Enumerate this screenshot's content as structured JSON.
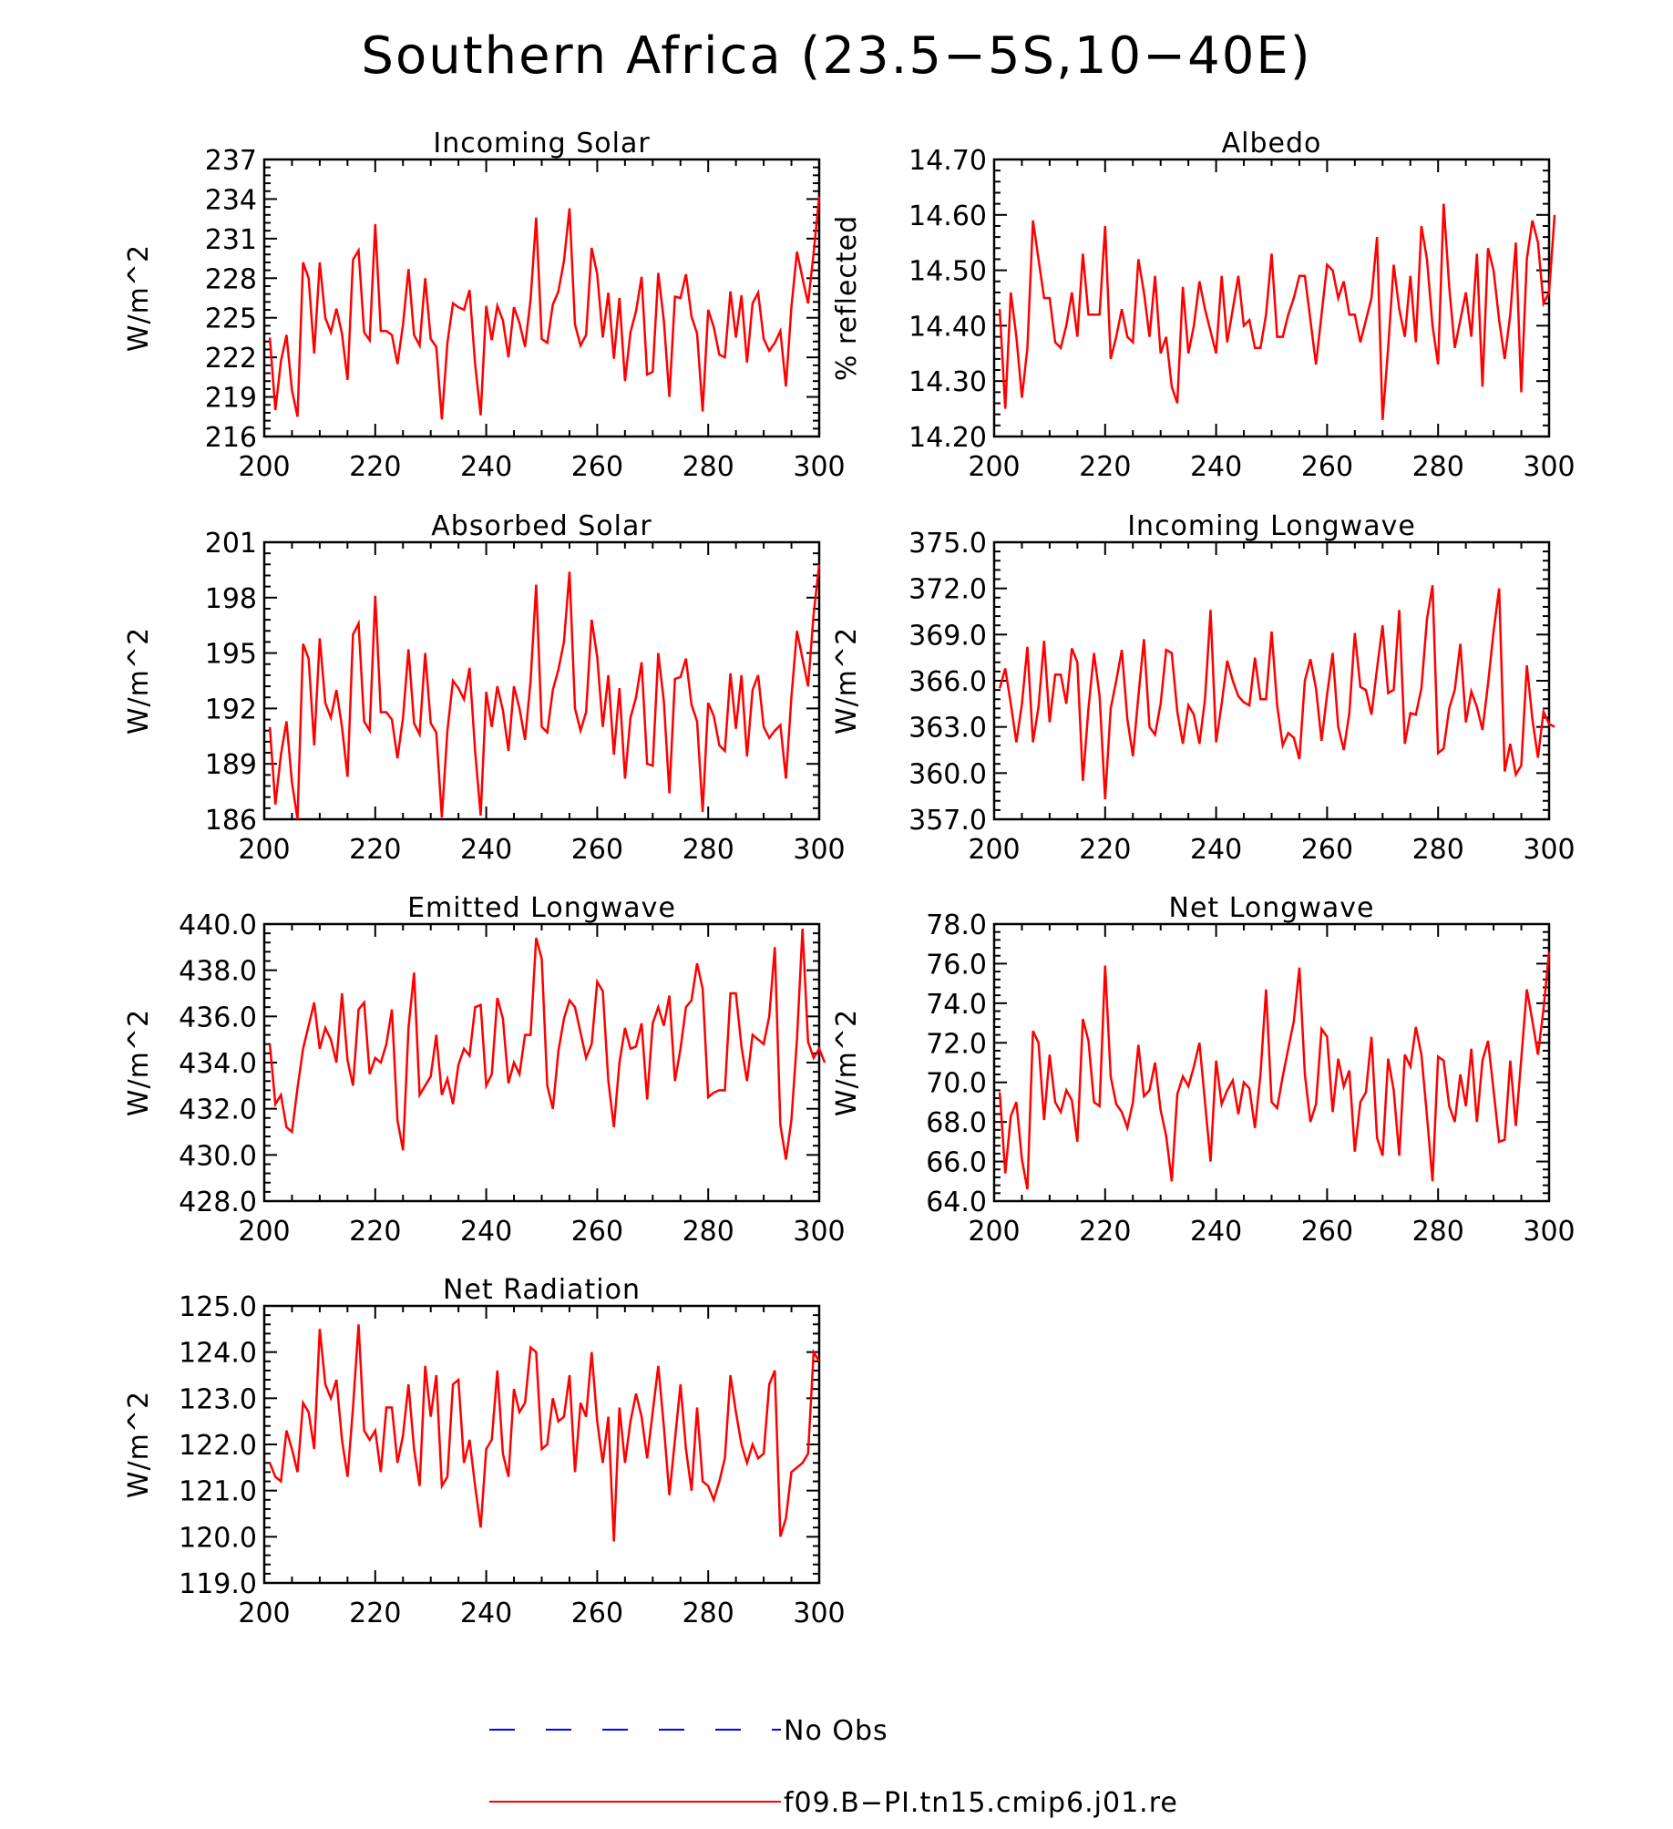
{
  "title": "Southern Africa (23.5−5S,10−40E)",
  "colors": {
    "model": "#ff0000",
    "obs": "#0000ff",
    "axes": "#000000"
  },
  "legend": {
    "obs_label": "No Obs",
    "model_label": "f09.B−PI.tn15.cmip6.j01.re"
  },
  "chart_data": [
    {
      "type": "line",
      "title": "Incoming Solar",
      "ylabel": "W/m^2",
      "xlim": [
        200,
        300
      ],
      "ylim": [
        216,
        237
      ],
      "xticks": [
        200,
        220,
        240,
        260,
        280,
        300
      ],
      "xtick_labels": [
        "200",
        "220",
        "240",
        "260",
        "280",
        "300"
      ],
      "yticks": [
        216,
        219,
        222,
        225,
        228,
        231,
        234,
        237
      ],
      "ytick_labels": [
        "216",
        "219",
        "222",
        "225",
        "228",
        "231",
        "234",
        "237"
      ],
      "series": [
        {
          "x_start": 201,
          "values": [
            223.5,
            218.0,
            221.7,
            223.7,
            219.5,
            217.5,
            229.2,
            228.0,
            222.3,
            229.2,
            225.0,
            223.9,
            225.7,
            223.8,
            220.3,
            229.4,
            230.1,
            223.9,
            223.3,
            232.1,
            224.0,
            224.0,
            223.7,
            221.5,
            224.5,
            228.7,
            223.7,
            222.9,
            228.0,
            223.4,
            222.8,
            217.3,
            223.1,
            226.1,
            225.8,
            225.6,
            227.1,
            221.5,
            217.6,
            225.9,
            223.3,
            225.9,
            224.8,
            222.0,
            225.8,
            224.6,
            222.8,
            226.4,
            232.6,
            223.4,
            223.1,
            226.0,
            227.0,
            229.3,
            233.3,
            224.5,
            222.9,
            223.7,
            230.3,
            228.3,
            223.5,
            226.9,
            221.9,
            226.5,
            220.2,
            223.9,
            225.5,
            228.1,
            220.7,
            220.9,
            228.4,
            224.8,
            219.0,
            226.6,
            226.5,
            228.3,
            225.1,
            223.8,
            217.9,
            225.6,
            224.3,
            222.2,
            222.0,
            227.0,
            223.5,
            226.7,
            221.6,
            226.1,
            226.9,
            223.4,
            222.5,
            223.1,
            224.0,
            219.8,
            225.8,
            230.0,
            228.0,
            226.1,
            229.9,
            234.2
          ]
        }
      ]
    },
    {
      "type": "line",
      "title": "Albedo",
      "ylabel": "% reflected",
      "xlim": [
        200,
        300
      ],
      "ylim": [
        14.2,
        14.7
      ],
      "xticks": [
        200,
        220,
        240,
        260,
        280,
        300
      ],
      "xtick_labels": [
        "200",
        "220",
        "240",
        "260",
        "280",
        "300"
      ],
      "yticks": [
        14.2,
        14.3,
        14.4,
        14.5,
        14.6,
        14.7
      ],
      "ytick_labels": [
        "14.20",
        "14.30",
        "14.40",
        "14.50",
        "14.60",
        "14.70"
      ],
      "series": [
        {
          "x_start": 201,
          "values": [
            14.43,
            14.25,
            14.46,
            14.38,
            14.27,
            14.36,
            14.59,
            14.52,
            14.45,
            14.45,
            14.37,
            14.36,
            14.4,
            14.46,
            14.38,
            14.53,
            14.42,
            14.42,
            14.42,
            14.58,
            14.34,
            14.38,
            14.43,
            14.38,
            14.37,
            14.52,
            14.46,
            14.38,
            14.49,
            14.35,
            14.38,
            14.29,
            14.26,
            14.47,
            14.35,
            14.4,
            14.48,
            14.43,
            14.39,
            14.35,
            14.49,
            14.37,
            14.43,
            14.49,
            14.4,
            14.41,
            14.36,
            14.36,
            14.42,
            14.53,
            14.38,
            14.38,
            14.42,
            14.45,
            14.49,
            14.49,
            14.41,
            14.33,
            14.42,
            14.51,
            14.5,
            14.45,
            14.48,
            14.42,
            14.42,
            14.37,
            14.41,
            14.45,
            14.56,
            14.23,
            14.36,
            14.51,
            14.43,
            14.38,
            14.49,
            14.37,
            14.58,
            14.52,
            14.4,
            14.33,
            14.62,
            14.47,
            14.36,
            14.41,
            14.46,
            14.38,
            14.53,
            14.29,
            14.54,
            14.5,
            14.41,
            14.34,
            14.42,
            14.55,
            14.28,
            14.52,
            14.59,
            14.55,
            14.44,
            14.46,
            14.6
          ]
        }
      ]
    },
    {
      "type": "line",
      "title": "Absorbed Solar",
      "ylabel": "W/m^2",
      "xlim": [
        200,
        300
      ],
      "ylim": [
        186,
        201
      ],
      "xticks": [
        200,
        220,
        240,
        260,
        280,
        300
      ],
      "xtick_labels": [
        "200",
        "220",
        "240",
        "260",
        "280",
        "300"
      ],
      "yticks": [
        186,
        189,
        192,
        195,
        198,
        201
      ],
      "ytick_labels": [
        "186",
        "189",
        "192",
        "195",
        "198",
        "201"
      ],
      "series": [
        {
          "x_start": 201,
          "values": [
            191.0,
            186.8,
            189.5,
            191.3,
            188.0,
            186.0,
            195.5,
            194.7,
            190.0,
            195.8,
            192.3,
            191.5,
            193.0,
            191.0,
            188.3,
            196.0,
            196.6,
            191.3,
            190.8,
            198.1,
            191.8,
            191.8,
            191.4,
            189.3,
            191.5,
            195.2,
            191.2,
            190.6,
            195.0,
            191.2,
            190.7,
            186.1,
            190.8,
            193.5,
            193.1,
            192.5,
            194.2,
            189.7,
            186.2,
            192.9,
            191.0,
            193.2,
            191.9,
            189.7,
            193.2,
            192.0,
            190.3,
            193.5,
            198.7,
            191.0,
            190.7,
            193.0,
            194.1,
            195.6,
            199.4,
            192.0,
            190.8,
            191.8,
            196.8,
            194.8,
            191.0,
            193.8,
            189.5,
            193.1,
            188.2,
            191.5,
            192.6,
            194.5,
            189.0,
            188.9,
            195.0,
            192.4,
            187.4,
            193.6,
            193.7,
            194.7,
            192.2,
            191.3,
            186.4,
            192.3,
            191.6,
            190.0,
            189.7,
            193.9,
            190.9,
            193.8,
            189.4,
            193.0,
            193.8,
            191.0,
            190.4,
            190.8,
            191.1,
            188.2,
            192.6,
            196.2,
            194.7,
            193.2,
            197.1,
            199.8
          ]
        }
      ]
    },
    {
      "type": "line",
      "title": "Incoming Longwave",
      "ylabel": "W/m^2",
      "xlim": [
        200,
        300
      ],
      "ylim": [
        357.0,
        375.0
      ],
      "xticks": [
        200,
        220,
        240,
        260,
        280,
        300
      ],
      "xtick_labels": [
        "200",
        "220",
        "240",
        "260",
        "280",
        "300"
      ],
      "yticks": [
        357.0,
        360.0,
        363.0,
        366.0,
        369.0,
        372.0,
        375.0
      ],
      "ytick_labels": [
        "357.0",
        "360.0",
        "363.0",
        "366.0",
        "369.0",
        "372.0",
        "375.0"
      ],
      "series": [
        {
          "x_start": 201,
          "values": [
            365.5,
            366.8,
            364.5,
            362.0,
            364.5,
            368.2,
            362.0,
            364.3,
            368.6,
            363.3,
            366.4,
            366.4,
            364.5,
            368.1,
            367.2,
            359.5,
            364.2,
            367.8,
            365.0,
            358.3,
            364.2,
            366.0,
            368.0,
            363.5,
            361.1,
            365.0,
            368.7,
            363.0,
            362.5,
            364.5,
            368.0,
            367.8,
            364.0,
            361.9,
            364.4,
            363.8,
            361.9,
            364.8,
            370.6,
            362.0,
            364.5,
            367.3,
            366.0,
            365.0,
            364.6,
            364.4,
            367.5,
            364.8,
            364.8,
            369.2,
            364.4,
            361.8,
            362.6,
            362.3,
            360.9,
            366.0,
            367.4,
            365.5,
            362.1,
            365.1,
            367.8,
            363.0,
            361.5,
            363.9,
            369.1,
            365.6,
            365.4,
            363.8,
            366.8,
            369.6,
            365.2,
            365.4,
            370.6,
            361.9,
            363.9,
            363.8,
            365.5,
            370.0,
            372.2,
            361.3,
            361.6,
            364.2,
            365.4,
            368.4,
            363.3,
            365.3,
            364.3,
            362.8,
            365.8,
            369.2,
            372.0,
            360.1,
            361.9,
            359.9,
            360.5,
            367.0,
            363.5,
            361.0,
            364.0,
            363.2,
            363.0
          ]
        }
      ]
    },
    {
      "type": "line",
      "title": "Emitted Longwave",
      "ylabel": "W/m^2",
      "xlim": [
        200,
        300
      ],
      "ylim": [
        428.0,
        440.0
      ],
      "xticks": [
        200,
        220,
        240,
        260,
        280,
        300
      ],
      "xtick_labels": [
        "200",
        "220",
        "240",
        "260",
        "280",
        "300"
      ],
      "yticks": [
        428.0,
        430.0,
        432.0,
        434.0,
        436.0,
        438.0,
        440.0
      ],
      "ytick_labels": [
        "428.0",
        "430.0",
        "432.0",
        "434.0",
        "436.0",
        "438.0",
        "440.0"
      ],
      "series": [
        {
          "x_start": 201,
          "values": [
            434.8,
            432.2,
            432.6,
            431.2,
            431.0,
            432.9,
            434.6,
            435.6,
            436.6,
            434.6,
            435.5,
            435.0,
            434.0,
            437.0,
            434.1,
            433.0,
            436.3,
            436.6,
            433.5,
            434.2,
            434.0,
            434.8,
            436.3,
            431.5,
            430.2,
            435.5,
            437.9,
            432.6,
            433.0,
            433.4,
            435.2,
            432.6,
            433.3,
            432.2,
            433.9,
            434.6,
            434.3,
            436.4,
            436.5,
            433.0,
            433.5,
            436.8,
            435.9,
            433.1,
            434.0,
            433.5,
            435.2,
            435.2,
            439.4,
            438.5,
            433.0,
            432.0,
            434.5,
            435.9,
            436.7,
            436.4,
            435.3,
            434.2,
            434.8,
            437.5,
            437.1,
            433.2,
            431.2,
            434.0,
            435.5,
            434.6,
            434.7,
            435.7,
            432.4,
            435.7,
            436.4,
            435.6,
            436.9,
            433.2,
            434.6,
            436.4,
            436.7,
            438.3,
            437.2,
            432.5,
            432.7,
            432.8,
            432.8,
            437.0,
            437.0,
            434.7,
            433.2,
            435.2,
            435.0,
            434.8,
            436.0,
            439.0,
            431.3,
            429.8,
            431.5,
            435.0,
            439.8,
            434.9,
            434.2,
            434.6,
            434.0
          ]
        }
      ]
    },
    {
      "type": "line",
      "title": "Net Longwave",
      "ylabel": "W/m^2",
      "xlim": [
        200,
        300
      ],
      "ylim": [
        64.0,
        78.0
      ],
      "xticks": [
        200,
        220,
        240,
        260,
        280,
        300
      ],
      "xtick_labels": [
        "200",
        "220",
        "240",
        "260",
        "280",
        "300"
      ],
      "yticks": [
        64.0,
        66.0,
        68.0,
        70.0,
        72.0,
        74.0,
        76.0,
        78.0
      ],
      "ytick_labels": [
        "64.0",
        "66.0",
        "68.0",
        "70.0",
        "72.0",
        "74.0",
        "76.0",
        "78.0"
      ],
      "series": [
        {
          "x_start": 201,
          "values": [
            69.5,
            65.4,
            68.3,
            69.0,
            66.1,
            64.6,
            72.6,
            72.0,
            68.1,
            71.4,
            69.0,
            68.5,
            69.6,
            69.1,
            67.0,
            73.2,
            72.1,
            69.0,
            68.8,
            75.9,
            70.3,
            68.9,
            68.5,
            67.7,
            69.0,
            71.9,
            69.3,
            69.6,
            71.0,
            68.6,
            67.3,
            65.0,
            69.4,
            70.3,
            69.8,
            70.8,
            72.0,
            69.0,
            66.0,
            71.1,
            68.9,
            69.6,
            70.1,
            68.4,
            70.0,
            69.7,
            67.7,
            70.4,
            74.7,
            69.0,
            68.7,
            70.3,
            71.7,
            73.1,
            75.8,
            70.4,
            68.0,
            68.9,
            72.7,
            72.3,
            68.5,
            71.2,
            69.8,
            70.6,
            66.5,
            69.0,
            69.5,
            72.3,
            67.2,
            66.3,
            71.2,
            69.6,
            66.3,
            71.4,
            70.8,
            72.8,
            71.4,
            68.3,
            65.0,
            71.3,
            71.1,
            68.8,
            68.0,
            70.4,
            68.8,
            71.7,
            68.0,
            71.1,
            72.1,
            69.6,
            67.0,
            67.1,
            71.1,
            67.8,
            71.2,
            74.7,
            73.1,
            71.4,
            73.7,
            76.6
          ]
        }
      ]
    },
    {
      "type": "line",
      "title": "Net Radiation",
      "ylabel": "W/m^2",
      "xlim": [
        200,
        300
      ],
      "ylim": [
        119.0,
        125.0
      ],
      "xticks": [
        200,
        220,
        240,
        260,
        280,
        300
      ],
      "xtick_labels": [
        "200",
        "220",
        "240",
        "260",
        "280",
        "300"
      ],
      "yticks": [
        119.0,
        120.0,
        121.0,
        122.0,
        123.0,
        124.0,
        125.0
      ],
      "ytick_labels": [
        "119.0",
        "120.0",
        "121.0",
        "122.0",
        "123.0",
        "124.0",
        "125.0"
      ],
      "series": [
        {
          "x_start": 201,
          "values": [
            121.6,
            121.3,
            121.2,
            122.3,
            121.9,
            121.4,
            122.9,
            122.7,
            121.9,
            124.5,
            123.3,
            123.0,
            123.4,
            122.1,
            121.3,
            122.8,
            124.6,
            122.3,
            122.1,
            122.3,
            121.4,
            122.8,
            122.8,
            121.6,
            122.2,
            123.3,
            121.9,
            121.1,
            123.7,
            122.6,
            123.5,
            121.1,
            121.3,
            123.3,
            123.4,
            121.6,
            122.1,
            121.1,
            120.2,
            121.9,
            122.1,
            123.6,
            121.8,
            121.3,
            123.2,
            122.7,
            122.9,
            124.1,
            124.0,
            121.9,
            122.0,
            123.0,
            122.5,
            122.6,
            123.5,
            121.4,
            122.9,
            122.6,
            124.0,
            122.5,
            121.6,
            122.6,
            119.9,
            122.8,
            121.6,
            122.5,
            123.1,
            122.6,
            121.7,
            122.7,
            123.7,
            122.4,
            120.9,
            122.1,
            123.3,
            121.9,
            121.0,
            122.8,
            121.2,
            121.1,
            120.8,
            121.2,
            121.7,
            123.5,
            122.7,
            122.0,
            121.6,
            122.0,
            121.7,
            121.8,
            123.3,
            123.6,
            120.0,
            120.4,
            121.4,
            121.5,
            121.6,
            121.8,
            124.0,
            123.8
          ]
        }
      ]
    }
  ]
}
